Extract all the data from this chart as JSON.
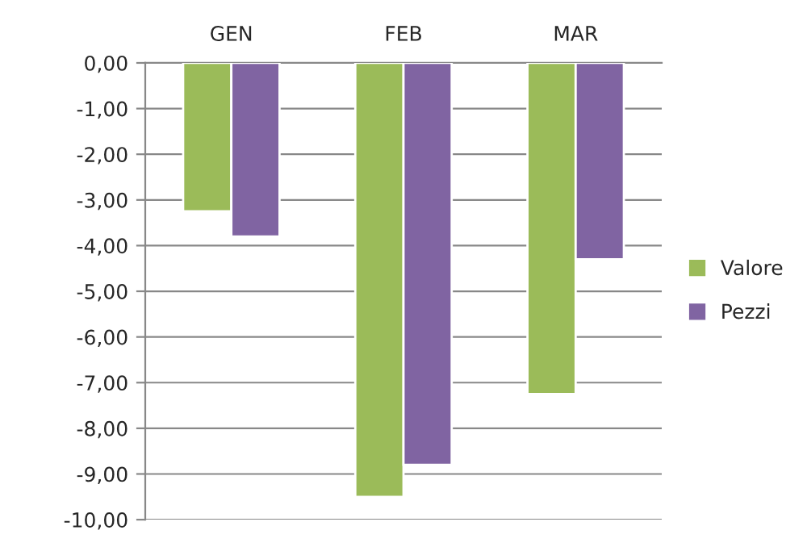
{
  "chart_data": {
    "type": "bar",
    "categories": [
      "GEN",
      "FEB",
      "MAR"
    ],
    "series": [
      {
        "name": "Valore",
        "color": "#9bbb59",
        "values": [
          -3.25,
          -9.5,
          -7.25
        ]
      },
      {
        "name": "Pezzi",
        "color": "#8064a2",
        "values": [
          -3.8,
          -8.8,
          -4.3
        ]
      }
    ],
    "ylim": [
      -10,
      0
    ],
    "yticks": [
      {
        "value": 0,
        "label": "0,00"
      },
      {
        "value": -1,
        "label": "-1,00"
      },
      {
        "value": -2,
        "label": "-2,00"
      },
      {
        "value": -3,
        "label": "-3,00"
      },
      {
        "value": -4,
        "label": "-4,00"
      },
      {
        "value": -5,
        "label": "-5,00"
      },
      {
        "value": -6,
        "label": "-6,00"
      },
      {
        "value": -7,
        "label": "-7,00"
      },
      {
        "value": -8,
        "label": "-8,00"
      },
      {
        "value": -9,
        "label": "-9,00"
      },
      {
        "value": -10,
        "label": "-10,00"
      }
    ],
    "grid": "y",
    "legend": "right"
  }
}
